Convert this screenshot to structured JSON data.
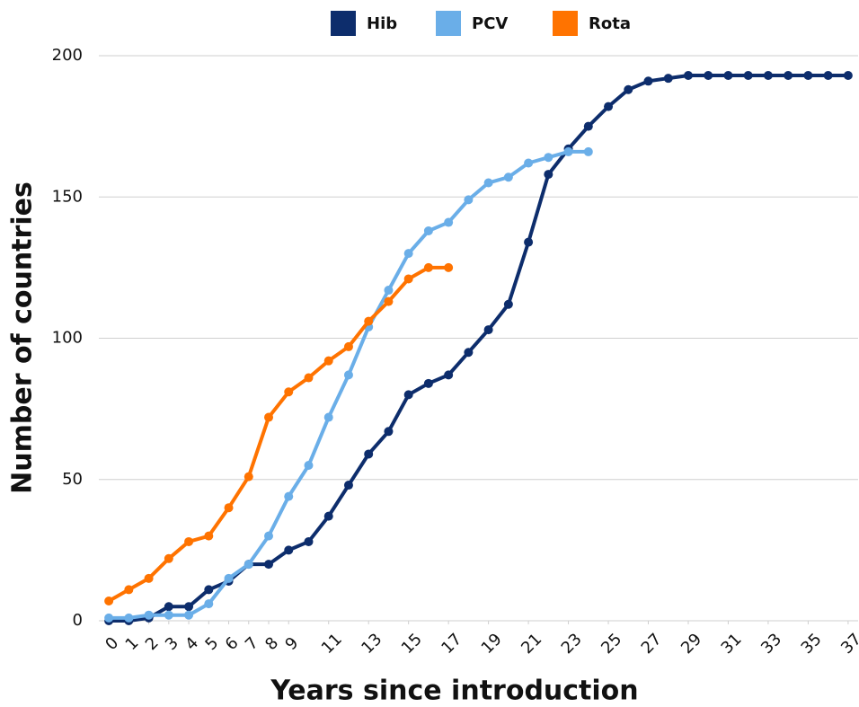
{
  "chart_data": {
    "type": "line",
    "x_label": "Years since introduction",
    "y_label": "Number of countries",
    "x": [
      0,
      1,
      2,
      3,
      4,
      5,
      6,
      7,
      8,
      9,
      10,
      11,
      12,
      13,
      14,
      15,
      16,
      17,
      18,
      19,
      20,
      21,
      22,
      23,
      24,
      25,
      26,
      27,
      28,
      29,
      30,
      31,
      32,
      33,
      34,
      35,
      36,
      37
    ],
    "series": [
      {
        "name": "Hib",
        "color": "#0d2d6c",
        "values": [
          0,
          0,
          1,
          5,
          5,
          11,
          14,
          20,
          20,
          25,
          28,
          37,
          48,
          59,
          67,
          80,
          84,
          87,
          95,
          103,
          112,
          134,
          158,
          167,
          175,
          182,
          188,
          191,
          192,
          193,
          193,
          193,
          193,
          193,
          193,
          193,
          193,
          193
        ]
      },
      {
        "name": "PCV",
        "color": "#6aaee8",
        "values": [
          1,
          1,
          2,
          2,
          2,
          6,
          15,
          20,
          30,
          44,
          55,
          72,
          87,
          104,
          117,
          130,
          138,
          141,
          149,
          155,
          157,
          162,
          164,
          166,
          166,
          null,
          null,
          null,
          null,
          null,
          null,
          null,
          null,
          null,
          null,
          null,
          null,
          null
        ]
      },
      {
        "name": "Rota",
        "color": "#ff7300",
        "values": [
          7,
          11,
          15,
          22,
          28,
          30,
          40,
          51,
          72,
          81,
          86,
          92,
          97,
          106,
          113,
          121,
          125,
          125,
          null,
          null,
          null,
          null,
          null,
          null,
          null,
          null,
          null,
          null,
          null,
          null,
          null,
          null,
          null,
          null,
          null,
          null,
          null,
          null
        ]
      }
    ],
    "xlim": [
      -0.5,
      37.5
    ],
    "xticks": [
      0,
      1,
      2,
      3,
      4,
      5,
      6,
      7,
      8,
      9,
      11,
      13,
      15,
      17,
      19,
      21,
      23,
      25,
      27,
      29,
      31,
      33,
      35,
      37
    ],
    "ylim": [
      0,
      200
    ],
    "yticks": [
      0,
      50,
      100,
      150,
      200
    ],
    "grid": true,
    "legend": "top"
  }
}
